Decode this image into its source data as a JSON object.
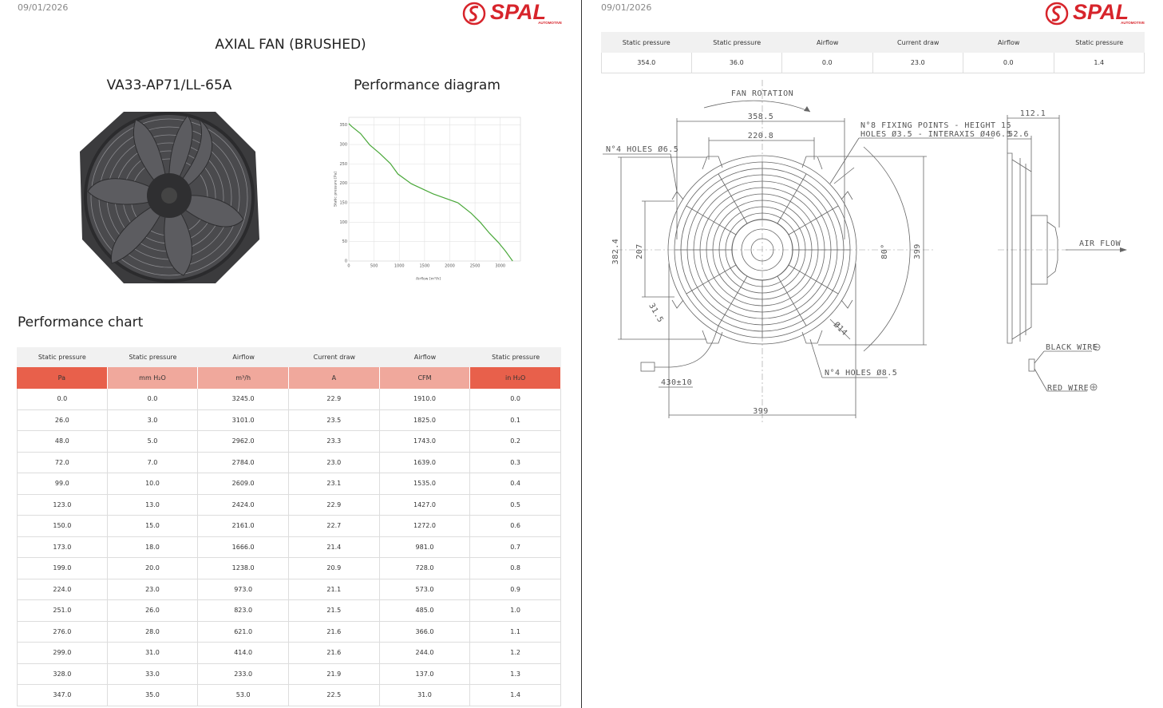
{
  "pages": [
    {
      "date": "09/01/2026",
      "logo": {
        "brand": "SPAL",
        "tagline": "AUTOMOTIVE"
      },
      "title": "AXIAL FAN (BRUSHED)",
      "model": "VA33-AP71/LL-65A",
      "diagram_title": "Performance diagram",
      "chart_title": "Performance chart",
      "performance_diagram": {
        "type": "line",
        "x_label": "Airflow [m³/h]",
        "y_label": "Static pressure [Pa]",
        "x": [
          0,
          53,
          233,
          414,
          621,
          823,
          973,
          1238,
          1666,
          2161,
          2424,
          2609,
          2784,
          2962,
          3101,
          3245
        ],
        "values": [
          354,
          347,
          328,
          299,
          276,
          251,
          224,
          199,
          173,
          150,
          123,
          99,
          72,
          48,
          26,
          0
        ],
        "color": "#4aa83a",
        "xlim": [
          0,
          3400
        ],
        "ylim": [
          0,
          370
        ],
        "xticks": [
          0,
          500,
          1000,
          1500,
          2000,
          2500,
          3000
        ],
        "yticks": [
          0,
          50,
          100,
          150,
          200,
          250,
          300,
          350
        ],
        "grid": true
      },
      "table": {
        "headers": [
          "Static pressure",
          "Static pressure",
          "Airflow",
          "Current draw",
          "Airflow",
          "Static pressure"
        ],
        "units": [
          "Pa",
          "mm H₂O",
          "m³/h",
          "A",
          "CFM",
          "in H₂O"
        ],
        "rows": [
          [
            "0.0",
            "0.0",
            "3245.0",
            "22.9",
            "1910.0",
            "0.0"
          ],
          [
            "26.0",
            "3.0",
            "3101.0",
            "23.5",
            "1825.0",
            "0.1"
          ],
          [
            "48.0",
            "5.0",
            "2962.0",
            "23.3",
            "1743.0",
            "0.2"
          ],
          [
            "72.0",
            "7.0",
            "2784.0",
            "23.0",
            "1639.0",
            "0.3"
          ],
          [
            "99.0",
            "10.0",
            "2609.0",
            "23.1",
            "1535.0",
            "0.4"
          ],
          [
            "123.0",
            "13.0",
            "2424.0",
            "22.9",
            "1427.0",
            "0.5"
          ],
          [
            "150.0",
            "15.0",
            "2161.0",
            "22.7",
            "1272.0",
            "0.6"
          ],
          [
            "173.0",
            "18.0",
            "1666.0",
            "21.4",
            "981.0",
            "0.7"
          ],
          [
            "199.0",
            "20.0",
            "1238.0",
            "20.9",
            "728.0",
            "0.8"
          ],
          [
            "224.0",
            "23.0",
            "973.0",
            "21.1",
            "573.0",
            "0.9"
          ],
          [
            "251.0",
            "26.0",
            "823.0",
            "21.5",
            "485.0",
            "1.0"
          ],
          [
            "276.0",
            "28.0",
            "621.0",
            "21.6",
            "366.0",
            "1.1"
          ],
          [
            "299.0",
            "31.0",
            "414.0",
            "21.6",
            "244.0",
            "1.2"
          ],
          [
            "328.0",
            "33.0",
            "233.0",
            "21.9",
            "137.0",
            "1.3"
          ],
          [
            "347.0",
            "35.0",
            "53.0",
            "22.5",
            "31.0",
            "1.4"
          ]
        ]
      }
    },
    {
      "date": "09/01/2026",
      "logo": {
        "brand": "SPAL",
        "tagline": "AUTOMOTIVE"
      },
      "table": {
        "headers": [
          "Static pressure",
          "Static pressure",
          "Airflow",
          "Current draw",
          "Airflow",
          "Static pressure"
        ],
        "rows": [
          [
            "354.0",
            "36.0",
            "0.0",
            "23.0",
            "0.0",
            "1.4"
          ]
        ]
      },
      "drawing": {
        "fan_rotation": "FAN ROTATION",
        "width_outer": "358.5",
        "width_inner": "220.8",
        "fixing_points": "N°8 FIXING POINTS - HEIGHT 15",
        "fixing_holes": "HOLES Ø3.5 - INTERAXIS Ø406.5",
        "holes_small": "N°4 HOLES Ø6.5",
        "height_total": "382.4",
        "height_inner": "207",
        "height_right": "399",
        "angle": "80°",
        "offset": "31.5",
        "diameter": "Ø14",
        "holes_large": "N°4 HOLES Ø8.5",
        "wire_length": "430±10",
        "width_bottom": "399",
        "depth_total": "112.1",
        "depth_shroud": "52.6",
        "air_flow": "AIR FLOW",
        "black_wire": "BLACK WIRE",
        "red_wire": "RED WIRE"
      }
    }
  ]
}
